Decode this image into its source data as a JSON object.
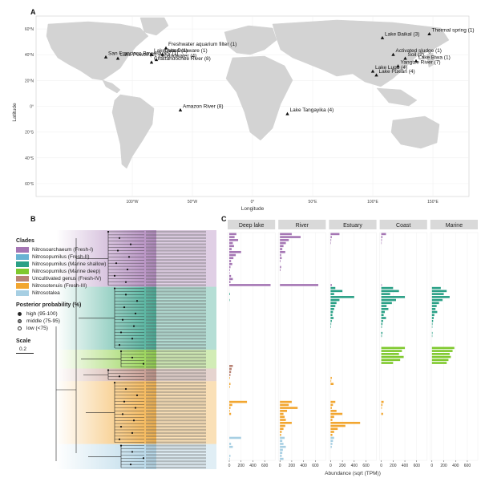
{
  "panels": {
    "a": "A",
    "b": "B",
    "c": "C"
  },
  "map": {
    "ylabel": "Latitude",
    "xlabel": "Longitude",
    "lat_ticks": [
      "60°N",
      "40°N",
      "20°N",
      "0°",
      "20°S",
      "40°S",
      "60°S"
    ],
    "lon_ticks": [
      "100°W",
      "50°W",
      "0°",
      "50°E",
      "100°E",
      "150°E"
    ],
    "sites": [
      {
        "name": "Lake Powell (1)",
        "lon": -112,
        "lat": 37
      },
      {
        "name": "San Francisco Bay estuary (1)",
        "lon": -122,
        "lat": 38
      },
      {
        "name": "Lake Acton (1)",
        "lon": -84,
        "lat": 40
      },
      {
        "name": "Freshwater aquarium filter (1)",
        "lon": -72,
        "lat": 45
      },
      {
        "name": "Lake Delaware (1)",
        "lon": -75,
        "lat": 40
      },
      {
        "name": "Groundwater (4)",
        "lon": -80,
        "lat": 36
      },
      {
        "name": "Chattahoochee River (8)",
        "lon": -84,
        "lat": 34
      },
      {
        "name": "Amazon River (8)",
        "lon": -60,
        "lat": -3
      },
      {
        "name": "Lake Tangayika (4)",
        "lon": 29,
        "lat": -6
      },
      {
        "name": "Lake Baikal (3)",
        "lon": 108,
        "lat": 53
      },
      {
        "name": "Activated sludge (1)",
        "lon": 117,
        "lat": 40
      },
      {
        "name": "Yangtze River (7)",
        "lon": 121,
        "lat": 31
      },
      {
        "name": "Lake Lugu (4)",
        "lon": 100,
        "lat": 27
      },
      {
        "name": "Lake Fuxian (4)",
        "lon": 103,
        "lat": 24
      },
      {
        "name": "Soil (2)",
        "lon": 127,
        "lat": 37
      },
      {
        "name": "Lake Biwa (1)",
        "lon": 136,
        "lat": 35
      },
      {
        "name": "Thermal spring (1)",
        "lon": 147,
        "lat": 56
      }
    ]
  },
  "legend": {
    "clades_title": "Clades",
    "clades": [
      {
        "name": "Nitrosoarchaeum (Fresh-I)",
        "color": "#a576b4"
      },
      {
        "name": "Nitrosopumilus (Fresh-II)",
        "color": "#68b3d3"
      },
      {
        "name": "Nitrosopumilus (Marine shallow)",
        "color": "#2aa086"
      },
      {
        "name": "Nitrosopumilus (Marine deep)",
        "color": "#7fc92e"
      },
      {
        "name": "Uncultivated genus (Fresh-IV)",
        "color": "#b88375"
      },
      {
        "name": "Nitrosotenuis (Fresh-III)",
        "color": "#f2a630"
      },
      {
        "name": "Nitrosotalea",
        "color": "#a7cfe3"
      }
    ],
    "pp_title": "Posterior probability (%)",
    "pp": [
      {
        "name": "high (95-100)",
        "fill": "#222222"
      },
      {
        "name": "middle (75-95)",
        "fill": "#888888"
      },
      {
        "name": "low (<75)",
        "fill": "#ffffff"
      }
    ],
    "scale_title": "Scale",
    "scale_value": "0.2"
  },
  "chart_data": {
    "type": "bar",
    "facets": [
      "Deep lake",
      "River",
      "Estuary",
      "Coast",
      "Marine"
    ],
    "xlabel": "Abundance (sqrt (TPM))",
    "xticks": [
      0,
      200,
      400,
      600
    ],
    "xlim": [
      0,
      750
    ],
    "clade_blocks": [
      {
        "clade": "Nitrosoarchaeum (Fresh-I)",
        "color": "#a576b4",
        "rows": 18
      },
      {
        "clade": "Nitrosopumilus (Marine shallow)",
        "color": "#2aa086",
        "rows": 20
      },
      {
        "clade": "Nitrosopumilus (Marine deep)",
        "color": "#7fc92e",
        "rows": 6
      },
      {
        "clade": "Uncultivated genus (Fresh-IV)",
        "color": "#b88375",
        "rows": 4
      },
      {
        "clade": "Nitrosotenuis (Fresh-III)",
        "color": "#f2a630",
        "rows": 20
      },
      {
        "clade": "Nitrosotalea",
        "color": "#a7cfe3",
        "rows": 8
      }
    ],
    "series": [
      {
        "name": "Deep lake",
        "values": [
          120,
          90,
          150,
          60,
          80,
          40,
          200,
          110,
          70,
          30,
          50,
          20,
          10,
          5,
          30,
          60,
          20,
          700,
          0,
          0,
          10,
          0,
          5,
          0,
          0,
          0,
          0,
          0,
          0,
          0,
          0,
          0,
          0,
          0,
          0,
          0,
          0,
          0,
          0,
          0,
          0,
          0,
          0,
          0,
          60,
          40,
          30,
          20,
          10,
          0,
          20,
          10,
          0,
          0,
          0,
          0,
          300,
          50,
          20,
          10,
          30,
          0,
          0,
          0,
          0,
          0,
          0,
          0,
          200,
          0,
          30,
          60,
          0,
          0,
          20,
          10
        ]
      },
      {
        "name": "River",
        "values": [
          200,
          350,
          150,
          100,
          60,
          40,
          90,
          20,
          30,
          10,
          0,
          20,
          10,
          0,
          0,
          0,
          0,
          650,
          0,
          0,
          0,
          0,
          0,
          0,
          0,
          0,
          0,
          0,
          0,
          0,
          0,
          0,
          0,
          0,
          0,
          0,
          0,
          0,
          0,
          0,
          0,
          0,
          0,
          0,
          0,
          0,
          0,
          0,
          0,
          0,
          0,
          0,
          0,
          0,
          0,
          0,
          200,
          150,
          300,
          120,
          60,
          80,
          100,
          200,
          90,
          60,
          30,
          20,
          80,
          40,
          60,
          100,
          50,
          40,
          30,
          60
        ]
      },
      {
        "name": "Estuary",
        "values": [
          150,
          20,
          10,
          5,
          0,
          0,
          0,
          0,
          0,
          0,
          0,
          0,
          0,
          0,
          0,
          0,
          0,
          20,
          80,
          200,
          60,
          400,
          150,
          100,
          80,
          60,
          40,
          30,
          50,
          20,
          10,
          5,
          0,
          0,
          0,
          0,
          0,
          0,
          0,
          0,
          0,
          0,
          0,
          0,
          0,
          0,
          0,
          0,
          20,
          10,
          50,
          0,
          0,
          0,
          0,
          0,
          80,
          40,
          20,
          100,
          200,
          60,
          30,
          500,
          250,
          120,
          60,
          30,
          60,
          40,
          30,
          20,
          0,
          0,
          0,
          0
        ]
      },
      {
        "name": "Coast",
        "values": [
          80,
          20,
          10,
          5,
          0,
          0,
          0,
          0,
          0,
          0,
          0,
          0,
          0,
          0,
          0,
          0,
          0,
          10,
          200,
          300,
          150,
          400,
          250,
          180,
          90,
          120,
          60,
          40,
          80,
          30,
          20,
          10,
          0,
          20,
          10,
          0,
          0,
          0,
          400,
          350,
          300,
          380,
          320,
          200,
          0,
          0,
          0,
          0,
          0,
          0,
          0,
          0,
          0,
          0,
          0,
          0,
          40,
          20,
          10,
          0,
          30,
          0,
          0,
          0,
          0,
          0,
          0,
          0,
          0,
          0,
          0,
          0,
          0,
          0,
          0,
          0
        ]
      },
      {
        "name": "Marine",
        "values": [
          0,
          0,
          0,
          0,
          0,
          0,
          0,
          0,
          0,
          0,
          0,
          0,
          0,
          0,
          0,
          0,
          0,
          0,
          150,
          250,
          200,
          300,
          180,
          120,
          80,
          60,
          90,
          40,
          30,
          20,
          10,
          5,
          0,
          10,
          5,
          0,
          0,
          0,
          380,
          350,
          300,
          320,
          280,
          250,
          0,
          0,
          0,
          0,
          0,
          0,
          0,
          0,
          0,
          0,
          0,
          0,
          0,
          0,
          0,
          0,
          0,
          0,
          0,
          0,
          0,
          0,
          0,
          0,
          0,
          0,
          0,
          0,
          0,
          0,
          0,
          0
        ]
      }
    ]
  }
}
